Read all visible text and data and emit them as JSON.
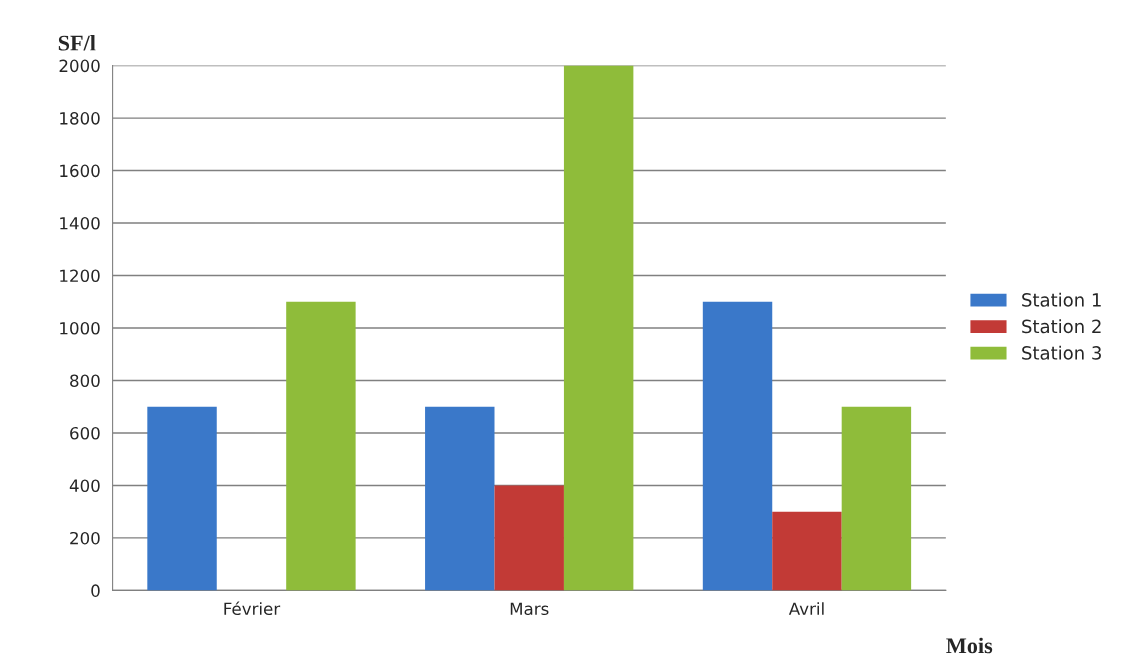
{
  "chart_data": {
    "type": "bar",
    "ylabel": "SF/l",
    "xlabel": "Mois",
    "categories": [
      "Février",
      "Mars",
      "Avril"
    ],
    "series": [
      {
        "name": "Station 1",
        "color": "#3a78c9",
        "values": [
          700,
          700,
          1100
        ]
      },
      {
        "name": "Station 2",
        "color": "#c23a36",
        "values": [
          0,
          400,
          300
        ]
      },
      {
        "name": "Station 3",
        "color": "#8fbc3a",
        "values": [
          1100,
          2000,
          700
        ]
      }
    ],
    "ylim": [
      0,
      2000
    ],
    "yticks": [
      0,
      200,
      400,
      600,
      800,
      1000,
      1200,
      1400,
      1600,
      1800,
      2000
    ],
    "grid": "y",
    "legend": "right"
  }
}
